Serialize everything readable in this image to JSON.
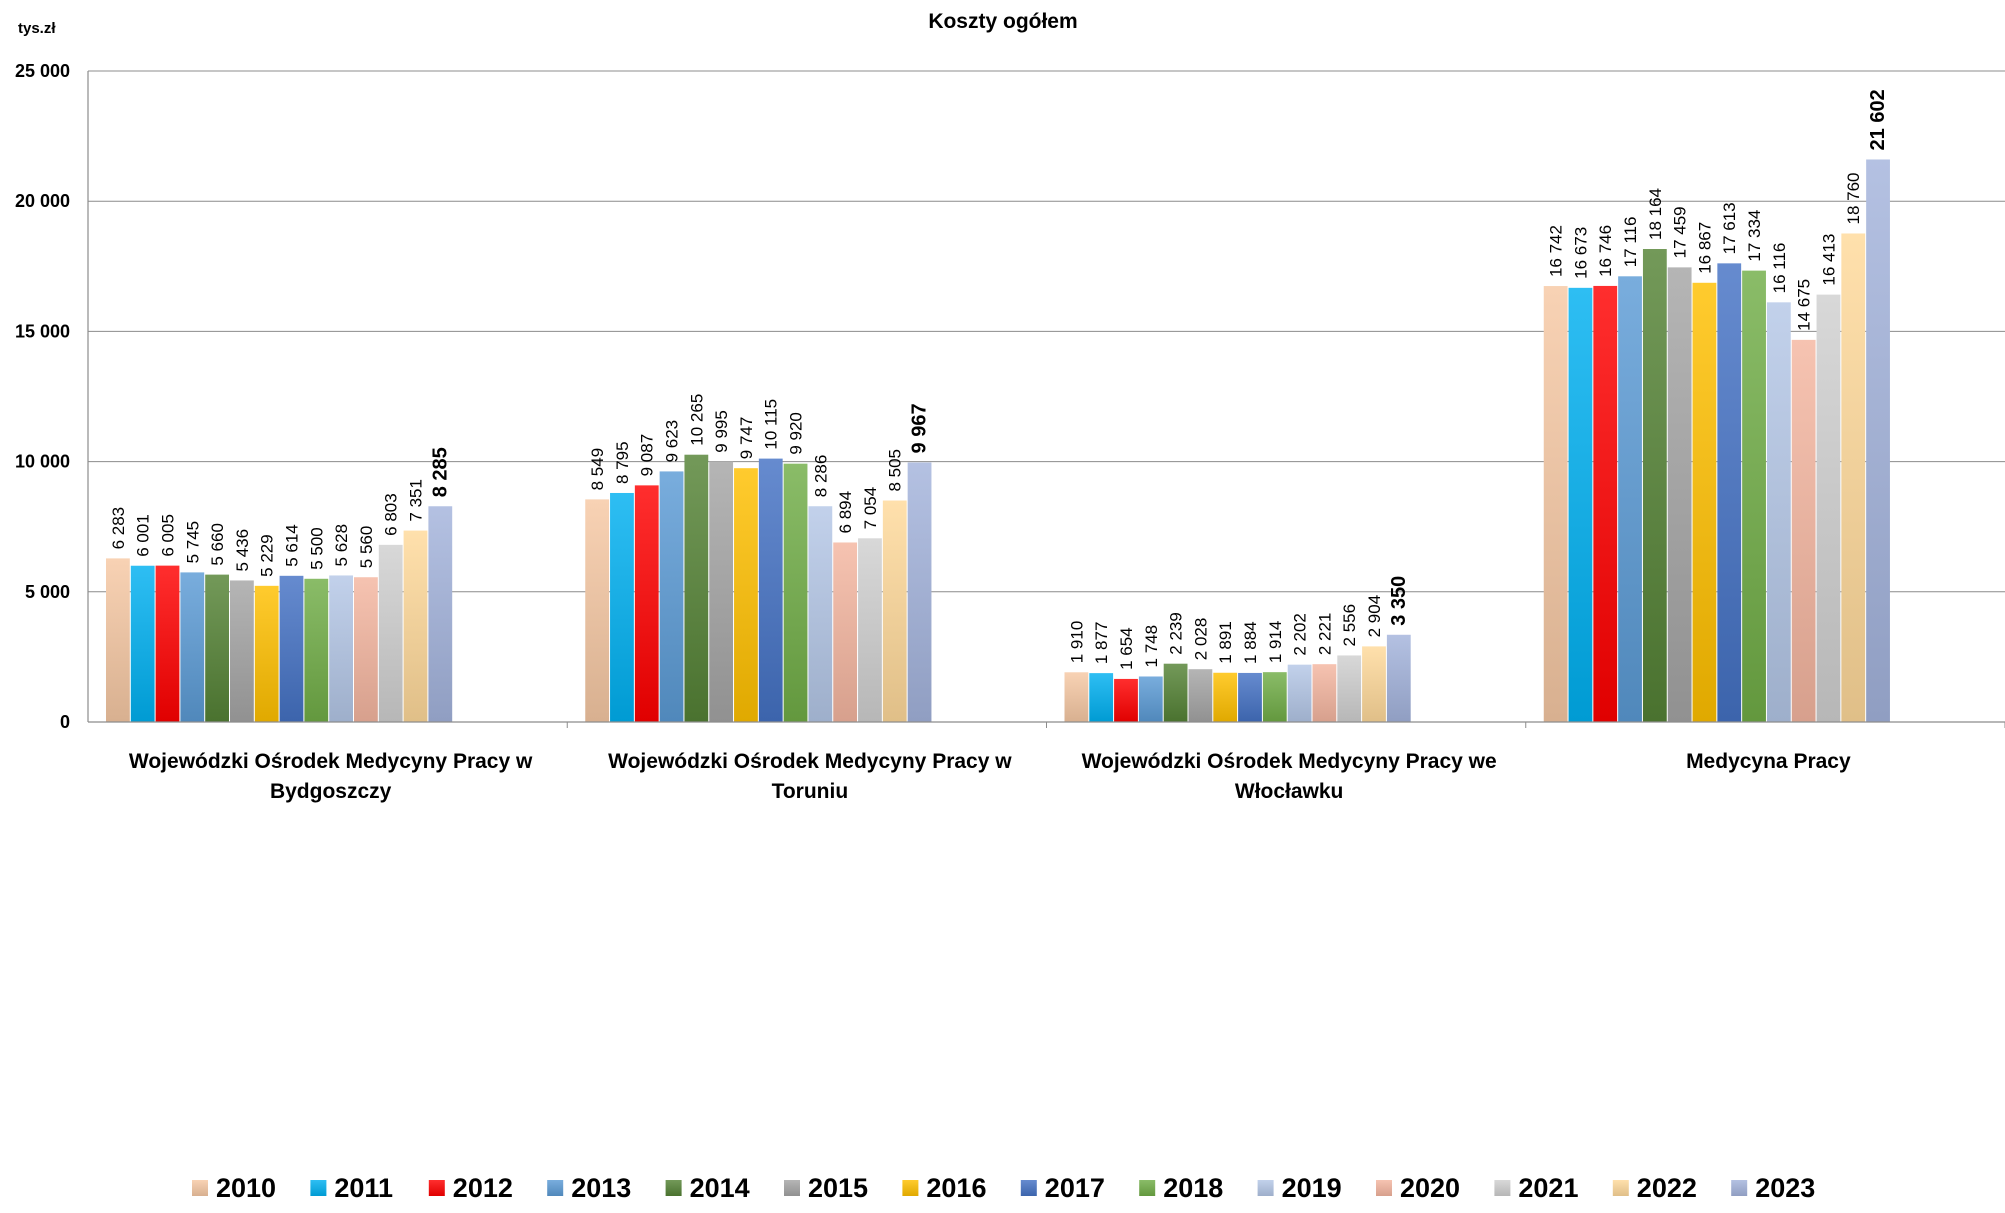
{
  "chart_data": {
    "type": "bar",
    "title": "Koszty ogółem",
    "ylabel": "tys.zł",
    "ylim": [
      0,
      25000
    ],
    "yticks": [
      0,
      5000,
      10000,
      15000,
      20000,
      25000
    ],
    "ytick_labels": [
      "0",
      "5 000",
      "10 000",
      "15 000",
      "20 000",
      "25 000"
    ],
    "grid": true,
    "legend_position": "bottom",
    "categories": [
      "Wojewódzki Ośrodek Medycyny Pracy w Bydgoszczy",
      "Wojewódzki Ośrodek Medycyny Pracy w Toruniu",
      "Wojewódzki Ośrodek Medycyny Pracy we Włocławku",
      "Medycyna Pracy"
    ],
    "category_label_lines": [
      [
        "Wojewódzki Ośrodek Medycyny Pracy w",
        "Bydgoszczy"
      ],
      [
        "Wojewódzki Ośrodek Medycyny Pracy w",
        "Toruniu"
      ],
      [
        "Wojewódzki Ośrodek Medycyny Pracy we",
        "Włocławku"
      ],
      [
        "Medycyna Pracy"
      ]
    ],
    "series": [
      {
        "name": "2010",
        "color": "#f6c8a4",
        "values": [
          6283,
          8549,
          1910,
          16742
        ],
        "labels": [
          "6 283",
          "8 549",
          "1 910",
          "16 742"
        ]
      },
      {
        "name": "2011",
        "color": "#00b0f0",
        "values": [
          6001,
          8795,
          1877,
          16673
        ],
        "labels": [
          "6 001",
          "8 795",
          "1 877",
          "16 673"
        ]
      },
      {
        "name": "2012",
        "color": "#ff0000",
        "values": [
          6005,
          9087,
          1654,
          16746
        ],
        "labels": [
          "6 005",
          "9 087",
          "1 654",
          "16 746"
        ]
      },
      {
        "name": "2013",
        "color": "#5b9bd5",
        "values": [
          5745,
          9623,
          1748,
          17116
        ],
        "labels": [
          "5 745",
          "9 623",
          "1 748",
          "17 116"
        ]
      },
      {
        "name": "2014",
        "color": "#548235",
        "values": [
          5660,
          10265,
          2239,
          18164
        ],
        "labels": [
          "5 660",
          "10 265",
          "2 239",
          "18 164"
        ]
      },
      {
        "name": "2015",
        "color": "#a5a5a5",
        "values": [
          5436,
          9995,
          2028,
          17459
        ],
        "labels": [
          "5 436",
          "9 995",
          "2 028",
          "17 459"
        ]
      },
      {
        "name": "2016",
        "color": "#ffc000",
        "values": [
          5229,
          9747,
          1891,
          16867
        ],
        "labels": [
          "5 229",
          "9 747",
          "1 891",
          "16 867"
        ]
      },
      {
        "name": "2017",
        "color": "#4472c4",
        "values": [
          5614,
          10115,
          1884,
          17613
        ],
        "labels": [
          "5 614",
          "10 115",
          "1 884",
          "17 613"
        ]
      },
      {
        "name": "2018",
        "color": "#70ad47",
        "values": [
          5500,
          9920,
          1914,
          17334
        ],
        "labels": [
          "5 500",
          "9 920",
          "1 914",
          "17 334"
        ]
      },
      {
        "name": "2019",
        "color": "#b4c7e7",
        "values": [
          5628,
          8286,
          2202,
          16116
        ],
        "labels": [
          "5 628",
          "8 286",
          "2 202",
          "16 116"
        ]
      },
      {
        "name": "2020",
        "color": "#f4b6a0",
        "values": [
          5560,
          6894,
          2221,
          14675
        ],
        "labels": [
          "5 560",
          "6 894",
          "2 221",
          "14 675"
        ]
      },
      {
        "name": "2021",
        "color": "#d0d0d0",
        "values": [
          6803,
          7054,
          2556,
          16413
        ],
        "labels": [
          "6 803",
          "7 054",
          "2 556",
          "16 413"
        ]
      },
      {
        "name": "2022",
        "color": "#ffd99a",
        "values": [
          7351,
          8505,
          2904,
          18760
        ],
        "labels": [
          "7 351",
          "8 505",
          "2 904",
          "18 760"
        ]
      },
      {
        "name": "2023",
        "color": "#a4b3dc",
        "values": [
          8285,
          9967,
          3350,
          21602
        ],
        "labels": [
          "8 285",
          "9 967",
          "3 350",
          "21 602"
        ],
        "bold_labels": true
      }
    ]
  }
}
